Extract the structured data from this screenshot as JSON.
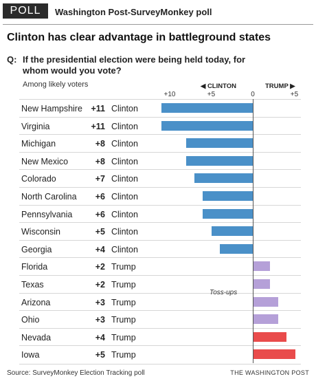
{
  "header": {
    "badge": "POLL",
    "source": "Washington Post-SurveyMonkey poll",
    "headline": "Clinton has clear advantage in battleground states",
    "q_label": "Q:",
    "question": "If the presidential election were being held today, for whom would you vote?",
    "subhead": "Among likely voters"
  },
  "chart_data": {
    "type": "bar",
    "orientation": "horizontal",
    "direction_left": "◀ CLINTON",
    "direction_right": "TRUMP ▶",
    "ticks": [
      "+10",
      "+5",
      "0",
      "+5"
    ],
    "tick_values": [
      -10,
      -5,
      0,
      5
    ],
    "xlim": [
      -11,
      5
    ],
    "annotation": "Toss-ups",
    "colors": {
      "clinton": "#4a90c8",
      "tossup": "#b5a0d8",
      "trump": "#e94b4b"
    },
    "rows": [
      {
        "state": "New Hampshire",
        "margin": "+11",
        "leader": "Clinton",
        "value": -11,
        "color": "#4a90c8"
      },
      {
        "state": "Virginia",
        "margin": "+11",
        "leader": "Clinton",
        "value": -11,
        "color": "#4a90c8"
      },
      {
        "state": "Michigan",
        "margin": "+8",
        "leader": "Clinton",
        "value": -8,
        "color": "#4a90c8"
      },
      {
        "state": "New Mexico",
        "margin": "+8",
        "leader": "Clinton",
        "value": -8,
        "color": "#4a90c8"
      },
      {
        "state": "Colorado",
        "margin": "+7",
        "leader": "Clinton",
        "value": -7,
        "color": "#4a90c8"
      },
      {
        "state": "North Carolina",
        "margin": "+6",
        "leader": "Clinton",
        "value": -6,
        "color": "#4a90c8"
      },
      {
        "state": "Pennsylvania",
        "margin": "+6",
        "leader": "Clinton",
        "value": -6,
        "color": "#4a90c8"
      },
      {
        "state": "Wisconsin",
        "margin": "+5",
        "leader": "Clinton",
        "value": -5,
        "color": "#4a90c8"
      },
      {
        "state": "Georgia",
        "margin": "+4",
        "leader": "Clinton",
        "value": -4,
        "color": "#4a90c8"
      },
      {
        "state": "Florida",
        "margin": "+2",
        "leader": "Trump",
        "value": 2,
        "color": "#b5a0d8"
      },
      {
        "state": "Texas",
        "margin": "+2",
        "leader": "Trump",
        "value": 2,
        "color": "#b5a0d8"
      },
      {
        "state": "Arizona",
        "margin": "+3",
        "leader": "Trump",
        "value": 3,
        "color": "#b5a0d8"
      },
      {
        "state": "Ohio",
        "margin": "+3",
        "leader": "Trump",
        "value": 3,
        "color": "#b5a0d8"
      },
      {
        "state": "Nevada",
        "margin": "+4",
        "leader": "Trump",
        "value": 4,
        "color": "#e94b4b"
      },
      {
        "state": "Iowa",
        "margin": "+5",
        "leader": "Trump",
        "value": 5,
        "color": "#e94b4b"
      }
    ]
  },
  "footer": {
    "source": "Source: SurveyMonkey Election Tracking poll",
    "credit": "THE WASHINGTON POST"
  }
}
